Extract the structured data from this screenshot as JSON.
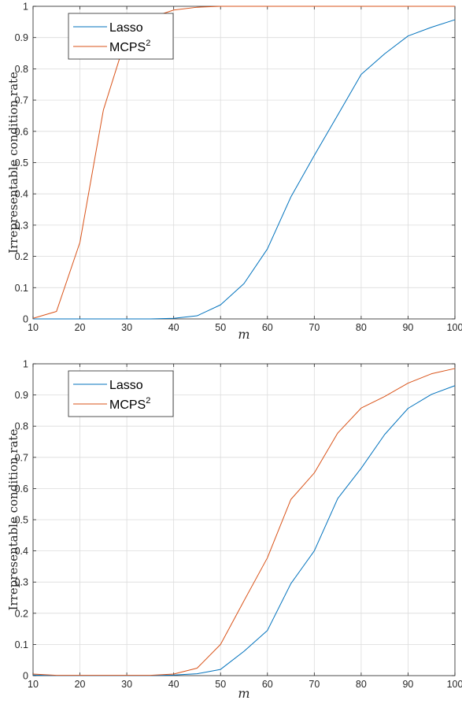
{
  "chart_data": [
    {
      "type": "line",
      "xlabel": "m",
      "ylabel": "Irrepresentable condition rate",
      "xlim": [
        10,
        100
      ],
      "ylim": [
        0,
        1
      ],
      "xticks": [
        10,
        20,
        30,
        40,
        50,
        60,
        70,
        80,
        90,
        100
      ],
      "yticks": [
        0,
        0.1,
        0.2,
        0.3,
        0.4,
        0.5,
        0.6,
        0.7,
        0.8,
        0.9,
        1
      ],
      "grid": true,
      "legend_position": "top-left",
      "x": [
        10,
        15,
        20,
        25,
        30,
        35,
        40,
        45,
        50,
        55,
        60,
        65,
        70,
        75,
        80,
        85,
        90,
        95,
        100
      ],
      "series": [
        {
          "name": "Lasso",
          "color": "#0072BD",
          "values": [
            0,
            0,
            0,
            0,
            0,
            0,
            0.002,
            0.01,
            0.045,
            0.113,
            0.224,
            0.39,
            0.523,
            0.652,
            0.782,
            0.848,
            0.905,
            0.933,
            0.957
          ]
        },
        {
          "name": "MCPS",
          "name_sup": "2",
          "color": "#D95319",
          "values": [
            0.002,
            0.024,
            0.245,
            0.668,
            0.907,
            0.963,
            0.988,
            0.997,
            1,
            1,
            1,
            1,
            1,
            1,
            1,
            1,
            1,
            1,
            1
          ]
        }
      ]
    },
    {
      "type": "line",
      "xlabel": "m",
      "ylabel": "Irrepresentable condition rate",
      "xlim": [
        10,
        100
      ],
      "ylim": [
        0,
        1
      ],
      "xticks": [
        10,
        20,
        30,
        40,
        50,
        60,
        70,
        80,
        90,
        100
      ],
      "yticks": [
        0,
        0.1,
        0.2,
        0.3,
        0.4,
        0.5,
        0.6,
        0.7,
        0.8,
        0.9,
        1
      ],
      "grid": true,
      "legend_position": "top-left",
      "x": [
        10,
        15,
        20,
        25,
        30,
        35,
        40,
        45,
        50,
        55,
        60,
        65,
        70,
        75,
        80,
        85,
        90,
        95,
        100
      ],
      "series": [
        {
          "name": "Lasso",
          "color": "#0072BD",
          "values": [
            0.002,
            0,
            0,
            0,
            0,
            0,
            0.002,
            0.006,
            0.02,
            0.078,
            0.145,
            0.295,
            0.4,
            0.568,
            0.665,
            0.773,
            0.857,
            0.902,
            0.93
          ]
        },
        {
          "name": "MCPS",
          "name_sup": "2",
          "color": "#D95319",
          "values": [
            0.005,
            0.001,
            0.001,
            0.001,
            0.001,
            0.001,
            0.005,
            0.024,
            0.1,
            0.24,
            0.378,
            0.565,
            0.65,
            0.778,
            0.858,
            0.895,
            0.938,
            0.968,
            0.985
          ]
        }
      ]
    }
  ]
}
